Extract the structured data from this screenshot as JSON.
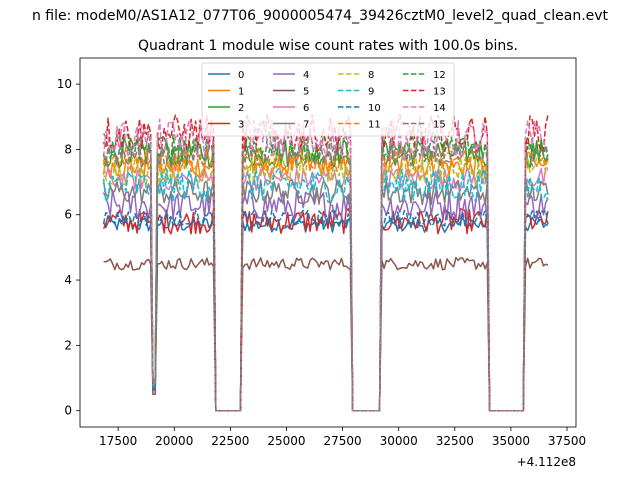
{
  "suptitle": "n file: modeM0/AS1A12_077T06_9000005474_39426cztM0_level2_quad_clean.evt",
  "chart_data": {
    "type": "line",
    "title": "Quadrant 1 module wise count rates with 100.0s bins.",
    "xlabel": "",
    "ylabel": "",
    "x_offset_label": "+4.112e8",
    "xlim": [
      15800,
      37900
    ],
    "ylim": [
      -0.5,
      10.8
    ],
    "xticks": [
      17500,
      20000,
      22500,
      25000,
      27500,
      30000,
      32500,
      35000,
      37500
    ],
    "yticks": [
      0,
      2,
      4,
      6,
      8,
      10
    ],
    "grid": false,
    "legend_placement": "top-center",
    "legend_columns": 4,
    "x_range": [
      16850,
      36650
    ],
    "x_step": 100,
    "gaps": [
      {
        "type": "dip",
        "start": 18950,
        "end": 19250,
        "min_at": 19100
      },
      {
        "type": "flat",
        "start": 21800,
        "end": 23000
      },
      {
        "type": "flat",
        "start": 27900,
        "end": 29250
      },
      {
        "type": "flat",
        "start": 33950,
        "end": 35650
      }
    ],
    "series": [
      {
        "name": "0",
        "color": "#1f77b4",
        "dash": false,
        "level": 5.7
      },
      {
        "name": "1",
        "color": "#ff7f0e",
        "dash": false,
        "level": 7.5
      },
      {
        "name": "2",
        "color": "#2ca02c",
        "dash": false,
        "level": 7.9
      },
      {
        "name": "3",
        "color": "#d62728",
        "dash": false,
        "level": 5.8
      },
      {
        "name": "4",
        "color": "#9467bd",
        "dash": false,
        "level": 6.3
      },
      {
        "name": "5",
        "color": "#8c564b",
        "dash": false,
        "level": 4.5
      },
      {
        "name": "6",
        "color": "#e377c2",
        "dash": false,
        "level": 7.1
      },
      {
        "name": "7",
        "color": "#7f7f7f",
        "dash": false,
        "level": 6.7
      },
      {
        "name": "8",
        "color": "#bcbd22",
        "dash": true,
        "level": 7.4
      },
      {
        "name": "9",
        "color": "#17becf",
        "dash": true,
        "level": 6.9
      },
      {
        "name": "10",
        "color": "#1f77b4",
        "dash": true,
        "level": 5.9
      },
      {
        "name": "11",
        "color": "#ff7f0e",
        "dash": true,
        "level": 7.7
      },
      {
        "name": "12",
        "color": "#2ca02c",
        "dash": true,
        "level": 8.1
      },
      {
        "name": "13",
        "color": "#d62728",
        "dash": true,
        "level": 8.5
      },
      {
        "name": "14",
        "color": "#e377c2",
        "dash": true,
        "level": 8.3
      },
      {
        "name": "15",
        "color": "#7f7f7f",
        "dash": true,
        "level": 7.8
      }
    ]
  }
}
